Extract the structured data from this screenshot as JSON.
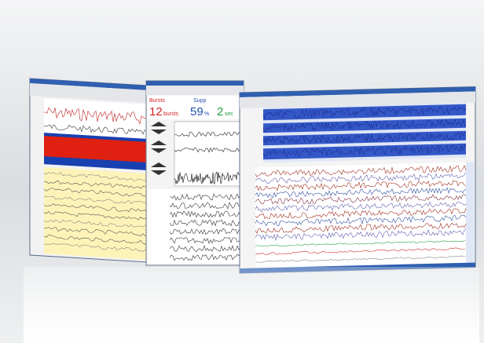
{
  "monitor": {
    "bursts_label": "Bursts",
    "bursts_value": "12",
    "bursts_unit": "bursts",
    "supp_label": "Supp",
    "supp_value": "59",
    "supp_unit": "%",
    "sec_value": "2",
    "sec_unit": "sec"
  }
}
